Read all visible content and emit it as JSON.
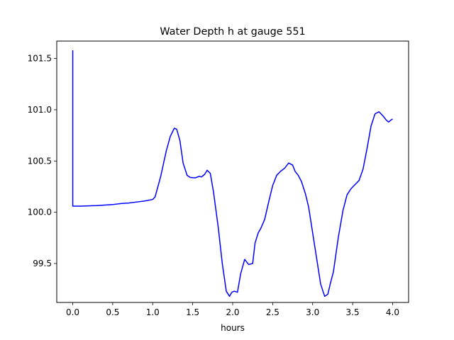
{
  "chart_data": {
    "type": "line",
    "title": "Water Depth h at gauge 551",
    "xlabel": "hours",
    "ylabel": "",
    "xlim": [
      -0.2,
      4.2
    ],
    "ylim": [
      99.12,
      101.67
    ],
    "xticks": [
      0.0,
      0.5,
      1.0,
      1.5,
      2.0,
      2.5,
      3.0,
      3.5,
      4.0
    ],
    "xtick_labels": [
      "0.0",
      "0.5",
      "1.0",
      "1.5",
      "2.0",
      "2.5",
      "3.0",
      "3.5",
      "4.0"
    ],
    "yticks": [
      99.5,
      100.0,
      100.5,
      101.0,
      101.5
    ],
    "ytick_labels": [
      "99.5",
      "100.0",
      "100.5",
      "101.0",
      "101.5"
    ],
    "grid": false,
    "series": [
      {
        "color": "#0000ff",
        "x": [
          0.0,
          0.0,
          0.1,
          0.3,
          0.5,
          0.6,
          0.7,
          0.8,
          0.9,
          1.0,
          1.03,
          1.1,
          1.17,
          1.22,
          1.27,
          1.3,
          1.34,
          1.38,
          1.43,
          1.47,
          1.53,
          1.58,
          1.61,
          1.65,
          1.68,
          1.72,
          1.76,
          1.82,
          1.87,
          1.92,
          1.96,
          1.99,
          2.02,
          2.06,
          2.1,
          2.15,
          2.2,
          2.25,
          2.28,
          2.32,
          2.35,
          2.4,
          2.45,
          2.5,
          2.55,
          2.6,
          2.65,
          2.7,
          2.75,
          2.78,
          2.82,
          2.86,
          2.91,
          2.95,
          3.0,
          3.05,
          3.1,
          3.15,
          3.19,
          3.22,
          3.26,
          3.32,
          3.38,
          3.43,
          3.48,
          3.53,
          3.58,
          3.63,
          3.68,
          3.73,
          3.78,
          3.83,
          3.88,
          3.92,
          3.95,
          3.98,
          4.0
        ],
        "y": [
          101.58,
          100.06,
          100.06,
          100.065,
          100.075,
          100.085,
          100.09,
          100.1,
          100.11,
          100.125,
          100.15,
          100.35,
          100.6,
          100.74,
          100.82,
          100.81,
          100.7,
          100.48,
          100.36,
          100.34,
          100.335,
          100.35,
          100.345,
          100.37,
          100.41,
          100.38,
          100.2,
          99.85,
          99.5,
          99.23,
          99.18,
          99.22,
          99.23,
          99.22,
          99.4,
          99.54,
          99.49,
          99.5,
          99.7,
          99.8,
          99.84,
          99.93,
          100.1,
          100.26,
          100.36,
          100.4,
          100.43,
          100.48,
          100.46,
          100.4,
          100.36,
          100.3,
          100.18,
          100.05,
          99.8,
          99.55,
          99.3,
          99.18,
          99.2,
          99.3,
          99.42,
          99.75,
          100.02,
          100.17,
          100.23,
          100.27,
          100.31,
          100.42,
          100.62,
          100.84,
          100.96,
          100.98,
          100.94,
          100.9,
          100.88,
          100.9,
          100.91
        ]
      }
    ]
  }
}
